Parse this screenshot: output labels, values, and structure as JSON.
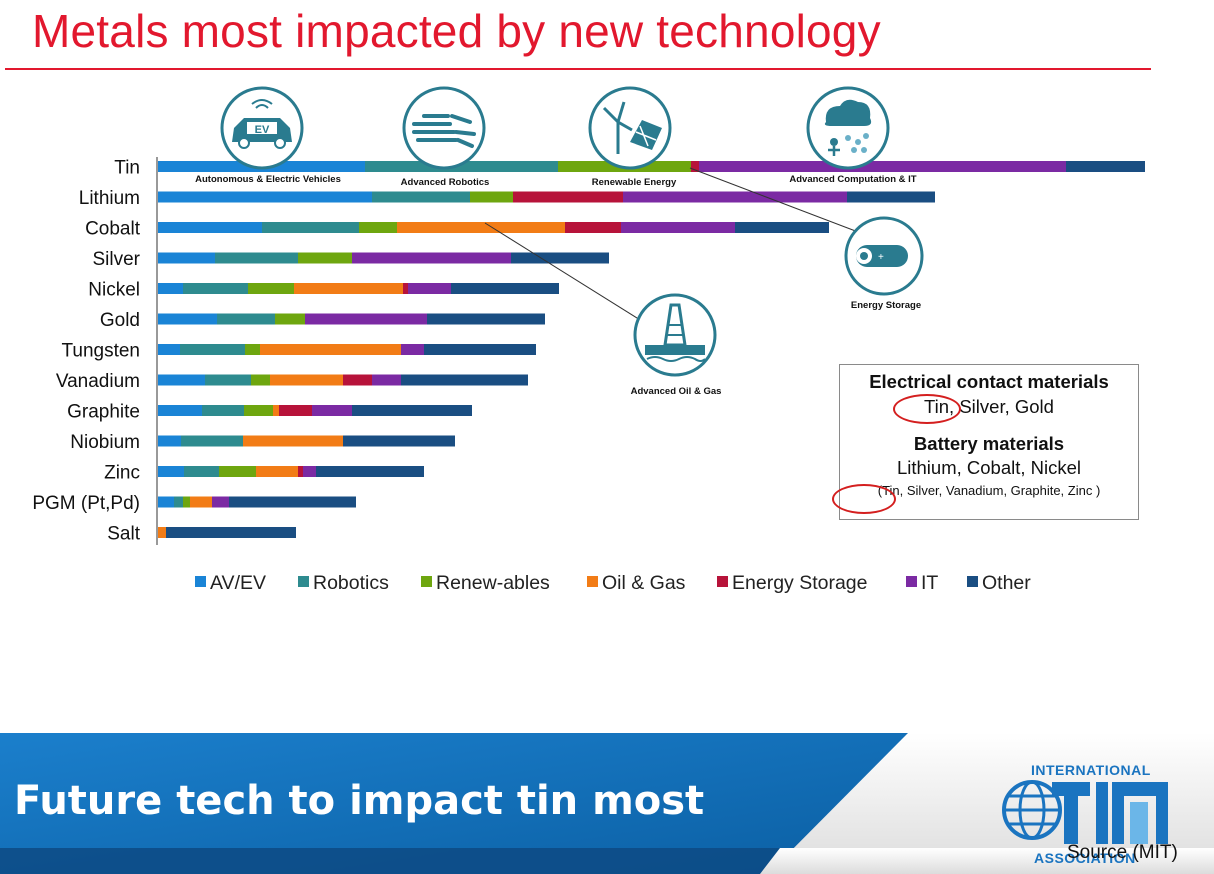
{
  "page": {
    "title": "Metals most impacted by new technology"
  },
  "chart_data": {
    "type": "bar",
    "orientation": "horizontal",
    "stacked": true,
    "categories": [
      "Tin",
      "Lithium",
      "Cobalt",
      "Silver",
      "Nickel",
      "Gold",
      "Tungsten",
      "Vanadium",
      "Graphite",
      "Niobium",
      "Zinc",
      "PGM (Pt,Pd)",
      "Salt"
    ],
    "series": [
      {
        "name": "AV/EV",
        "color": "#1a84d6",
        "values": [
          207,
          214,
          104,
          57,
          25,
          59,
          22,
          47,
          44,
          23,
          26,
          16,
          0
        ]
      },
      {
        "name": "Robotics",
        "color": "#2e8b8f",
        "values": [
          193,
          98,
          97,
          83,
          65,
          58,
          65,
          46,
          42,
          62,
          35,
          9,
          0
        ]
      },
      {
        "name": "Renew-ables",
        "color": "#6ea60f",
        "values": [
          133,
          43,
          38,
          54,
          46,
          30,
          15,
          19,
          29,
          0,
          37,
          7,
          0
        ]
      },
      {
        "name": "Oil & Gas",
        "color": "#f27c16",
        "values": [
          0,
          0,
          168,
          0,
          109,
          0,
          141,
          73,
          6,
          100,
          42,
          22,
          8
        ]
      },
      {
        "name": "Energy Storage",
        "color": "#b7133a",
        "values": [
          8,
          110,
          56,
          0,
          5,
          0,
          0,
          29,
          33,
          0,
          5,
          0,
          0
        ]
      },
      {
        "name": "IT",
        "color": "#7b2aa3",
        "values": [
          367,
          224,
          114,
          159,
          43,
          122,
          23,
          29,
          40,
          0,
          13,
          17,
          0
        ]
      },
      {
        "name": "Other",
        "color": "#1a4e82",
        "values": [
          79,
          88,
          94,
          98,
          108,
          118,
          112,
          127,
          120,
          112,
          108,
          127,
          130
        ]
      }
    ],
    "legend_position": "bottom",
    "grid": false,
    "annotations": [
      {
        "label": "Autonomous & Electric Vehicles",
        "icon": "electric-car-icon"
      },
      {
        "label": "Advanced Robotics",
        "icon": "robot-hand-icon"
      },
      {
        "label": "Renewable Energy",
        "icon": "wind-solar-icon"
      },
      {
        "label": "Advanced Computation & IT",
        "icon": "cloud-network-icon"
      },
      {
        "label": "Energy Storage",
        "icon": "battery-icon"
      },
      {
        "label": "Advanced Oil & Gas",
        "icon": "oil-rig-icon"
      }
    ]
  },
  "info_box": {
    "electrical_heading": "Electrical contact materials",
    "electrical_tin": "Tin,",
    "electrical_rest": " Silver, Gold",
    "battery_heading": "Battery materials",
    "battery_list": "Lithium, Cobalt, Nickel",
    "battery_open": "(",
    "battery_tin": "Tin,",
    "battery_rest": " Silver, Vanadium, Graphite, Zinc )"
  },
  "footer": {
    "title": "Future tech to impact tin most",
    "org_top": "INTERNATIONAL",
    "org_bottom": "ASSOCIATION",
    "source": "Source (MIT)",
    "colors": {
      "band_blue": "#0a6db6",
      "band_dark": "#0d4a84"
    }
  }
}
